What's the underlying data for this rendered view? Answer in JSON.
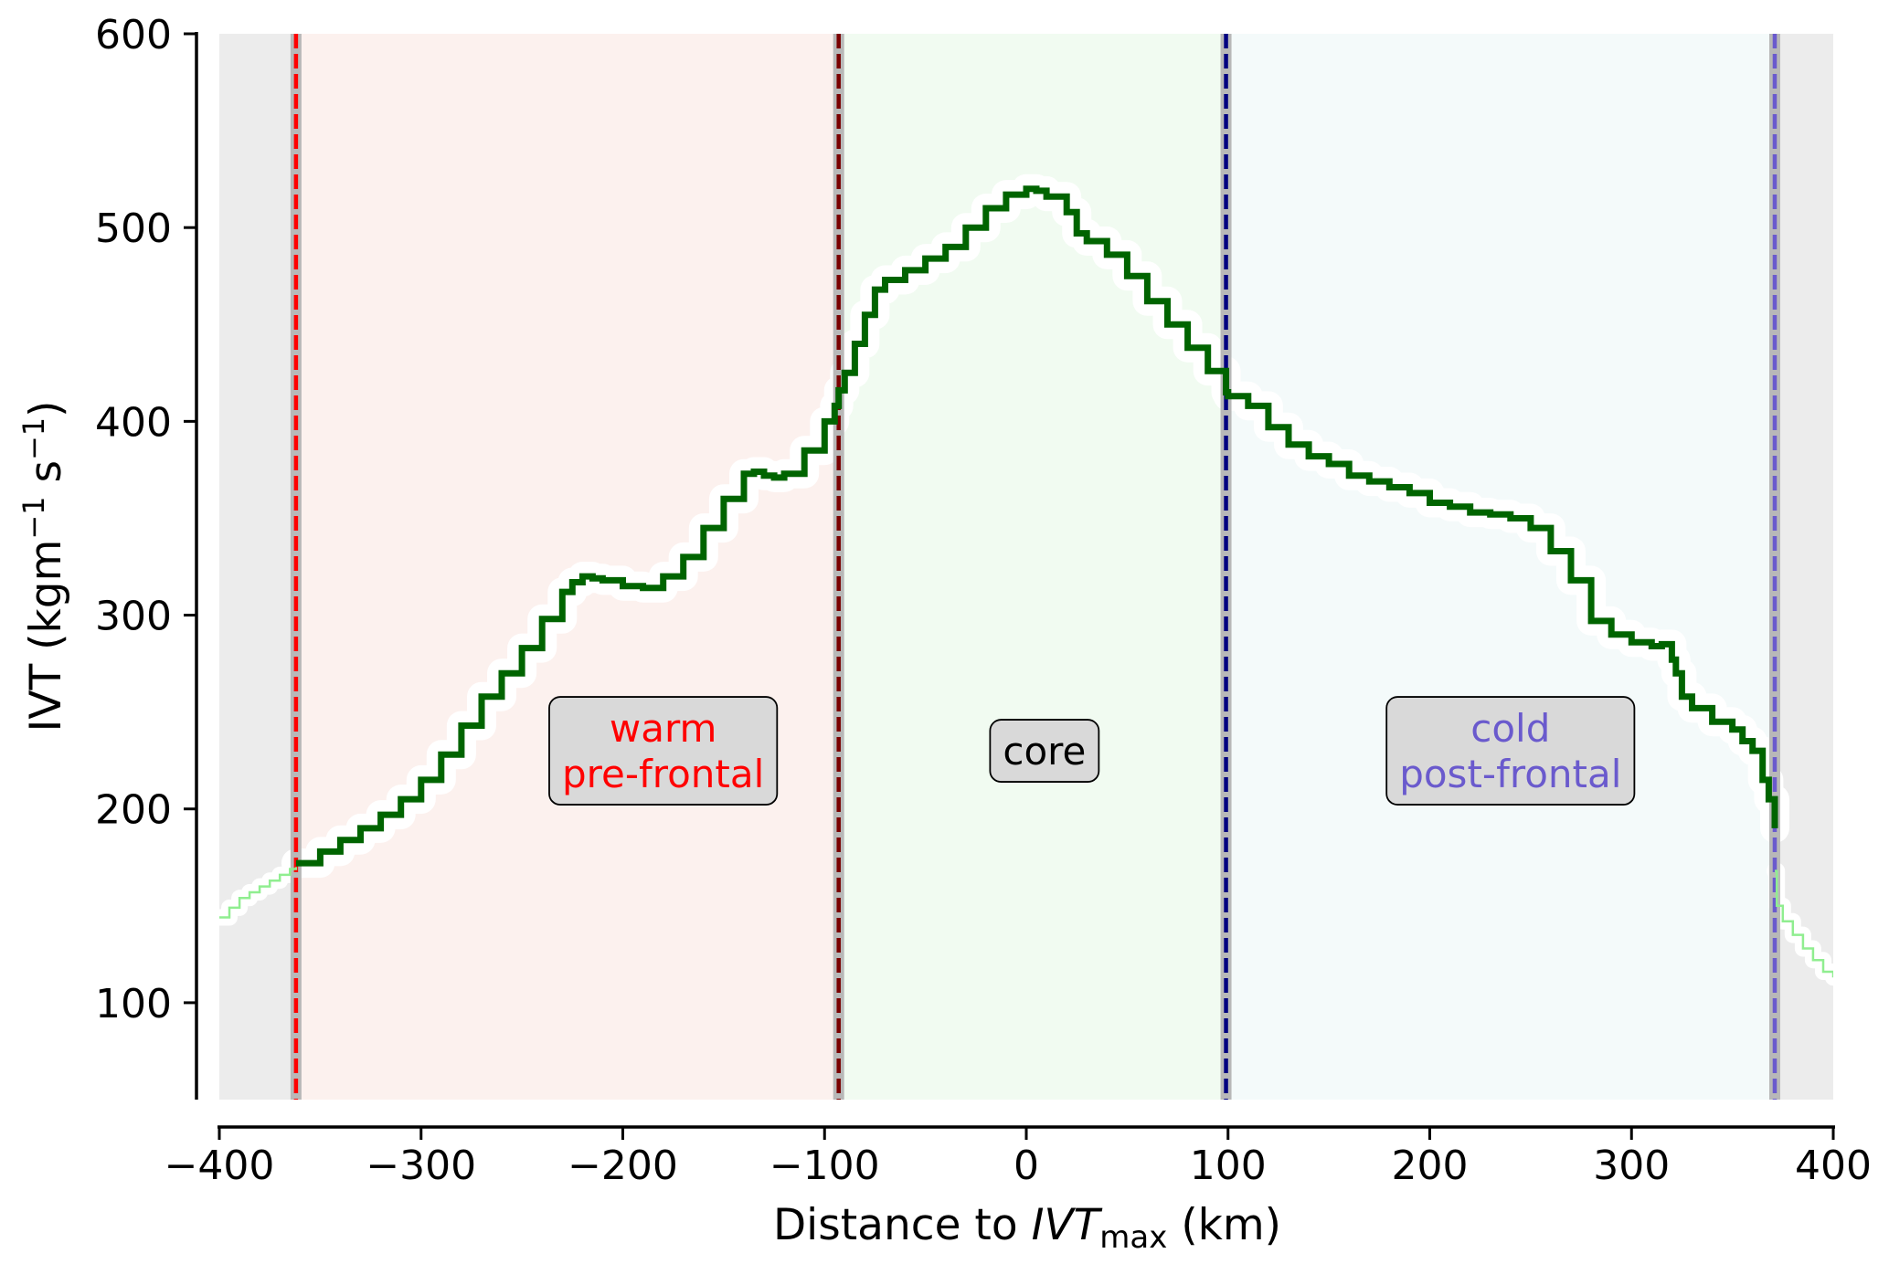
{
  "chart_data": {
    "type": "line",
    "xlabel": {
      "prefix": "Distance to ",
      "symbol": "IVT",
      "subscript": "max",
      "suffix": " (km)"
    },
    "ylabel": {
      "prefix": "IVT (kgm",
      "sup1": "−1",
      "mid": " s",
      "sup2": "−1",
      "suffix": ")"
    },
    "xlim": [
      -400,
      400
    ],
    "ylim": [
      50,
      600
    ],
    "xticks": [
      -400,
      -300,
      -200,
      -100,
      0,
      100,
      200,
      300,
      400
    ],
    "xtick_labels": [
      "−400",
      "−300",
      "−200",
      "−100",
      "0",
      "100",
      "200",
      "300",
      "400"
    ],
    "yticks": [
      100,
      200,
      300,
      400,
      500,
      600
    ],
    "ytick_labels": [
      "100",
      "200",
      "300",
      "400",
      "500",
      "600"
    ],
    "grid": false,
    "regions": [
      {
        "name": "outside-left",
        "x0": -400,
        "x1": -362,
        "color": "#ececec"
      },
      {
        "name": "warm",
        "x0": -362,
        "x1": -93,
        "color": "#fcf1ee"
      },
      {
        "name": "core",
        "x0": -93,
        "x1": 99,
        "color": "#f1fbf1"
      },
      {
        "name": "cold",
        "x0": 99,
        "x1": 371,
        "color": "#f4fafa"
      },
      {
        "name": "outside-right",
        "x0": 371,
        "x1": 400,
        "color": "#ececec"
      }
    ],
    "boundaries": [
      {
        "name": "warm-edge",
        "x": -362,
        "color": "#ff0000"
      },
      {
        "name": "warm-front",
        "x": -93,
        "color": "#7a0000"
      },
      {
        "name": "cold-front",
        "x": 99,
        "color": "#000080"
      },
      {
        "name": "cold-edge",
        "x": 371,
        "color": "#6a5acd"
      }
    ],
    "region_labels": [
      {
        "name": "warm",
        "lines": [
          "warm",
          "pre-frontal"
        ],
        "x": -180,
        "y": 230,
        "color": "#ff0000"
      },
      {
        "name": "core",
        "lines": [
          "core"
        ],
        "x": 9,
        "y": 230,
        "color": "#000000"
      },
      {
        "name": "cold",
        "lines": [
          "cold",
          "post-frontal"
        ],
        "x": 240,
        "y": 230,
        "color": "#6a5acd"
      }
    ],
    "series": [
      {
        "role": "outside-left",
        "color": "#90ee90",
        "x": [
          -400,
          -395,
          -390,
          -385,
          -380,
          -375,
          -370,
          -365,
          -362
        ],
        "y": [
          144,
          149,
          154,
          157,
          160,
          163,
          166,
          169,
          170
        ]
      },
      {
        "role": "inside",
        "color": "#006400",
        "x": [
          -362,
          -350,
          -340,
          -330,
          -320,
          -310,
          -300,
          -290,
          -280,
          -270,
          -260,
          -250,
          -240,
          -230,
          -225,
          -220,
          -215,
          -210,
          -200,
          -190,
          -180,
          -170,
          -160,
          -150,
          -140,
          -135,
          -130,
          -125,
          -120,
          -110,
          -100,
          -95,
          -93,
          -90,
          -85,
          -80,
          -75,
          -70,
          -60,
          -50,
          -40,
          -30,
          -20,
          -10,
          0,
          5,
          10,
          20,
          25,
          30,
          40,
          50,
          60,
          70,
          80,
          90,
          99,
          100,
          110,
          120,
          130,
          140,
          150,
          160,
          170,
          180,
          190,
          200,
          210,
          220,
          230,
          240,
          250,
          260,
          270,
          280,
          290,
          300,
          310,
          315,
          318,
          320,
          322,
          325,
          330,
          340,
          350,
          355,
          360,
          365,
          368,
          371
        ],
        "y": [
          172,
          178,
          184,
          190,
          197,
          205,
          215,
          228,
          243,
          258,
          270,
          283,
          298,
          312,
          317,
          320,
          319,
          318,
          315,
          314,
          320,
          330,
          345,
          360,
          373,
          374,
          372,
          371,
          373,
          385,
          400,
          408,
          416,
          425,
          440,
          455,
          468,
          473,
          478,
          484,
          490,
          500,
          510,
          517,
          520,
          519,
          516,
          508,
          497,
          493,
          486,
          475,
          462,
          450,
          438,
          426,
          415,
          413,
          408,
          397,
          388,
          382,
          378,
          372,
          369,
          366,
          363,
          358,
          356,
          353,
          352,
          350,
          345,
          333,
          318,
          297,
          290,
          286,
          284,
          285,
          285,
          277,
          270,
          258,
          252,
          245,
          241,
          235,
          230,
          215,
          205,
          190
        ]
      },
      {
        "role": "outside-right",
        "color": "#90ee90",
        "x": [
          371,
          372,
          375,
          380,
          385,
          390,
          395,
          400
        ],
        "y": [
          168,
          150,
          142,
          135,
          128,
          122,
          116,
          113
        ]
      }
    ]
  }
}
